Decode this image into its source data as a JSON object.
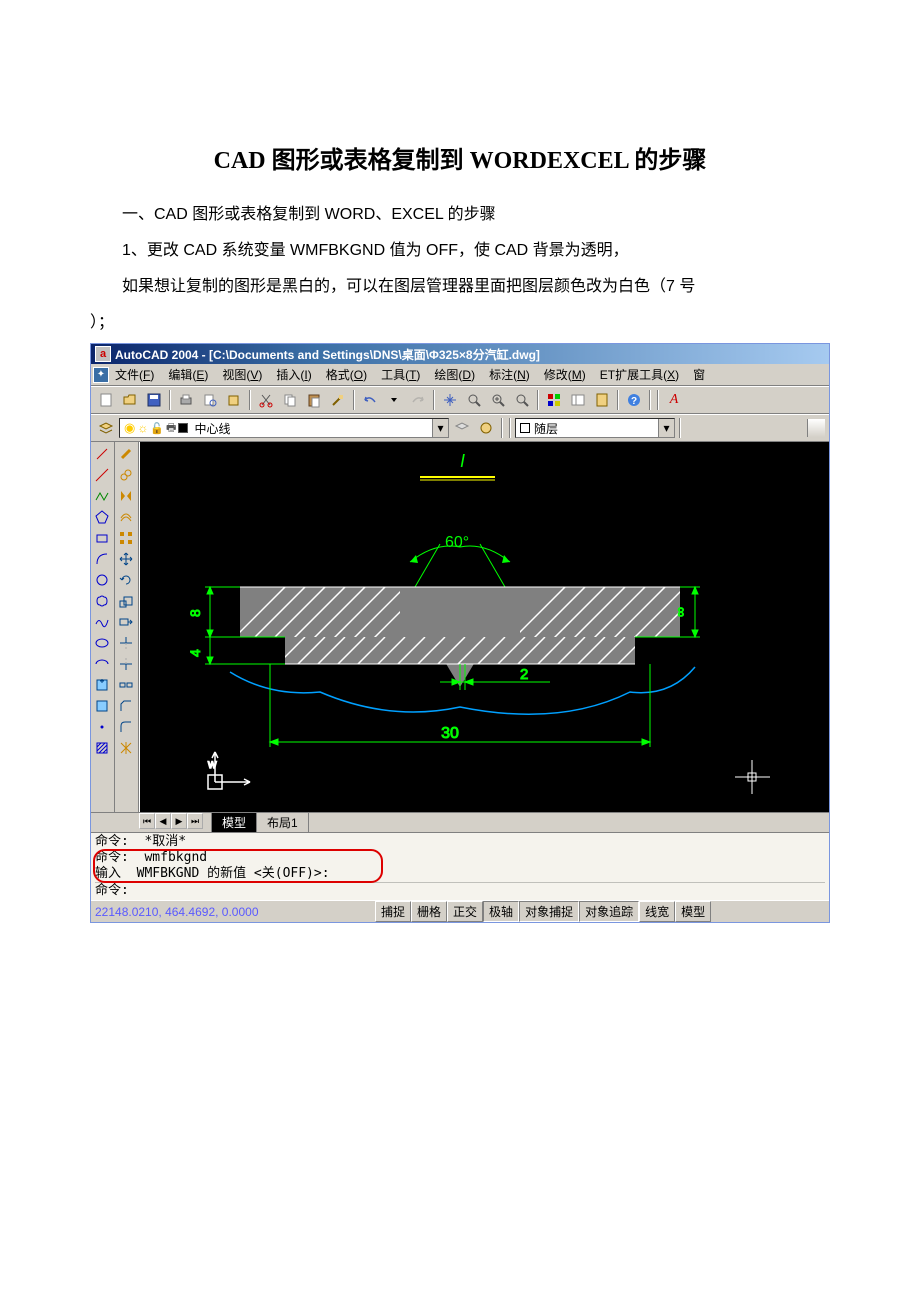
{
  "doc": {
    "title": "CAD 图形或表格复制到 WORDEXCEL 的步骤",
    "p1": "一、CAD 图形或表格复制到 WORD、EXCEL 的步骤",
    "p2": "1、更改 CAD 系统变量 WMFBKGND 值为 OFF，使 CAD 背景为透明，",
    "p3": "如果想让复制的图形是黑白的，可以在图层管理器里面把图层颜色改为白色（7 号",
    "p4": "）；"
  },
  "cad": {
    "titlebar": "AutoCAD 2004 - [C:\\Documents and Settings\\DNS\\桌面\\Φ325×8分汽缸.dwg]",
    "app_icon_letter": "a",
    "menus": [
      {
        "label": "文件",
        "key": "F"
      },
      {
        "label": "编辑",
        "key": "E"
      },
      {
        "label": "视图",
        "key": "V"
      },
      {
        "label": "插入",
        "key": "I"
      },
      {
        "label": "格式",
        "key": "O"
      },
      {
        "label": "工具",
        "key": "T"
      },
      {
        "label": "绘图",
        "key": "D"
      },
      {
        "label": "标注",
        "key": "N"
      },
      {
        "label": "修改",
        "key": "M"
      },
      {
        "label": "ET扩展工具",
        "key": "X"
      },
      {
        "label": "窗",
        "key": ""
      }
    ],
    "layer_name": "中心线",
    "color_name": "随层",
    "tabs": {
      "active": "模型",
      "other": "布局1"
    },
    "cmd": {
      "l1": "命令:  *取消*",
      "l2": "命令:  wmfbkgnd",
      "l3": "输入  WMFBKGND 的新值 <关(OFF)>:",
      "l4": "命令:"
    },
    "status": {
      "coords": "22148.0210, 464.4692, 0.0000",
      "buttons": [
        "捕捉",
        "栅格",
        "正交",
        "极轴",
        "对象捕捉",
        "对象追踪",
        "线宽",
        "模型"
      ]
    },
    "drawing": {
      "angle_label": "60°",
      "dim_bottom": "30",
      "dim_mid": "2",
      "dim_left_top": "8",
      "dim_left_bot": "4",
      "top_I": "I",
      "colors": {
        "dim": "#00ff00",
        "hatch": "#888888",
        "outline": "#00a0ff",
        "yellow": "#ffff00",
        "gray_fill": "#808080"
      }
    }
  }
}
